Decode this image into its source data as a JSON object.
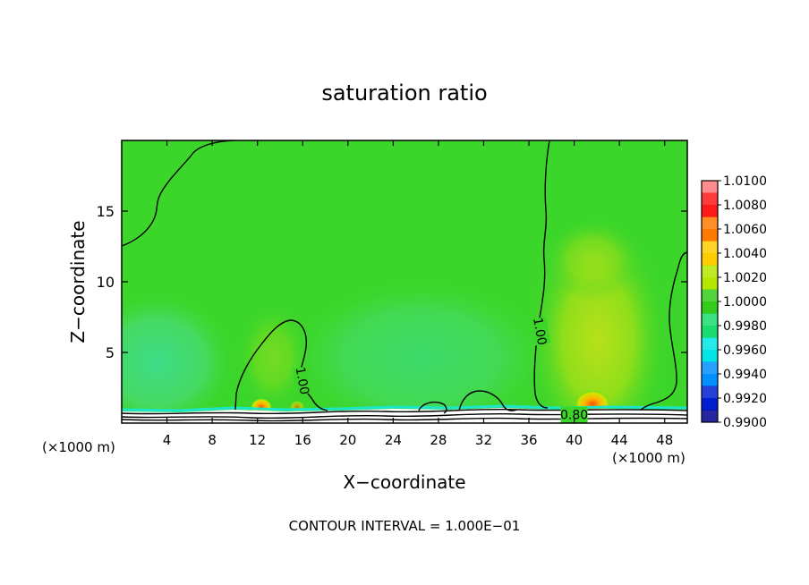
{
  "chart_data": {
    "type": "heatmap",
    "title": "saturation ratio",
    "xlabel": "X−coordinate",
    "ylabel": "Z−coordinate",
    "x_unit_label": "(×1000 m)",
    "z_unit_label": "(×1000 m)",
    "xlim": [
      0,
      50
    ],
    "ylim": [
      0,
      20
    ],
    "x_ticks": [
      4,
      8,
      12,
      16,
      20,
      24,
      28,
      32,
      36,
      40,
      44,
      48
    ],
    "y_ticks": [
      5,
      10,
      15
    ],
    "footer": "CONTOUR INTERVAL = 1.000E−01",
    "contour_labels": [
      {
        "text": "1.00",
        "x": 16.0,
        "z": 3.0
      },
      {
        "text": "1.00",
        "x": 37.0,
        "z": 6.5
      },
      {
        "text": "0.80",
        "x": 40.0,
        "z": 0.6
      }
    ],
    "colorbar": {
      "levels": [
        "1.0100",
        "1.0080",
        "1.0060",
        "1.0040",
        "1.0020",
        "1.0000",
        "0.9980",
        "0.9960",
        "0.9940",
        "0.9920",
        "0.9900"
      ],
      "colors": [
        "#ff8c8c",
        "#ff1a1a",
        "#ff7a00",
        "#ffcc00",
        "#b4e600",
        "#33cc1a",
        "#1adc6e",
        "#00e6e6",
        "#0090ff",
        "#0020d0",
        "#000090"
      ]
    },
    "colors": {
      "background_field": "#3cd62a",
      "moist_column": "#7fd81a",
      "dry_patch": "#52dc54"
    }
  }
}
